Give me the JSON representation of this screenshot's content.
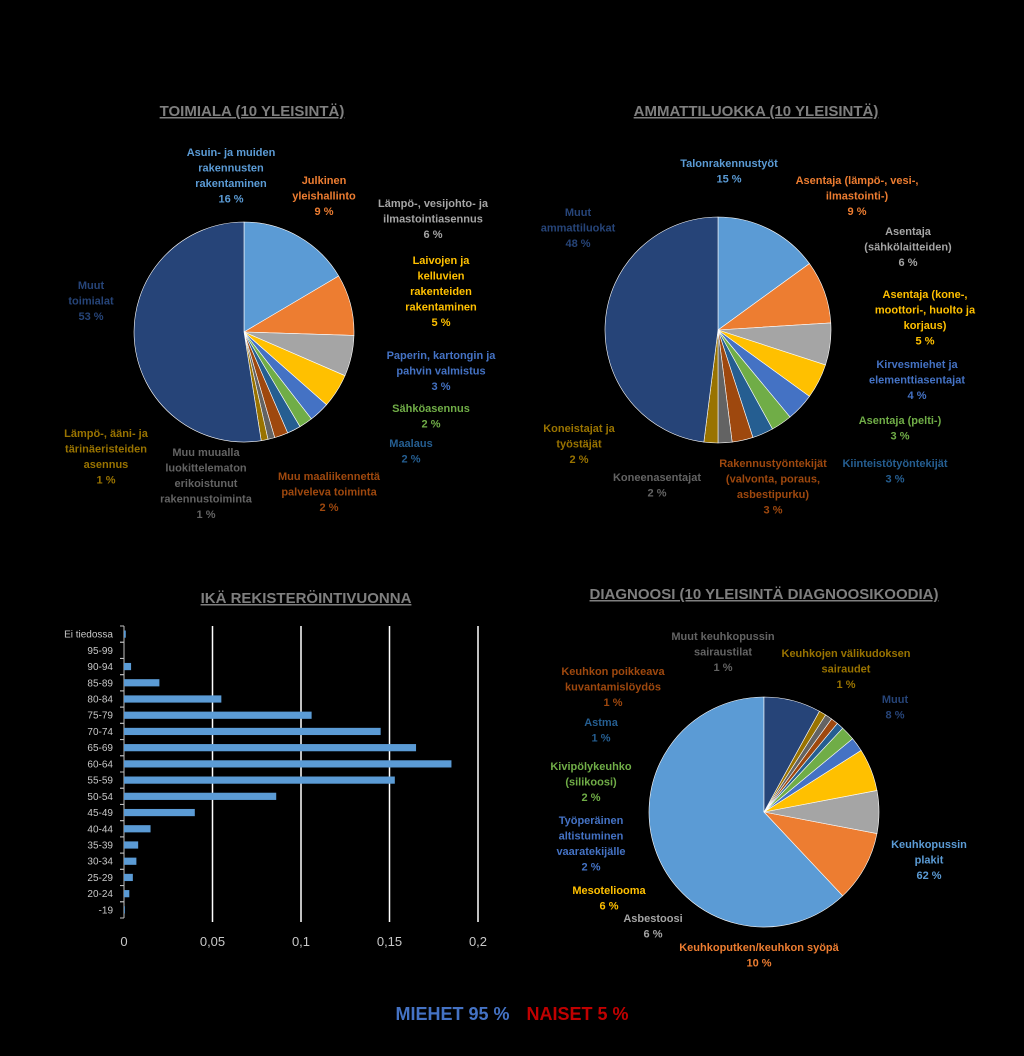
{
  "colors": {
    "c1": "#5b9bd5",
    "c2": "#ed7d31",
    "c3": "#a5a5a5",
    "c4": "#ffc000",
    "c5": "#4472c4",
    "c6": "#70ad47",
    "c7": "#255e91",
    "c8": "#9e480e",
    "c9": "#636363",
    "c10": "#997300",
    "c11": "#264478",
    "men": "#4472c4",
    "women": "#c00000"
  },
  "chart_data": [
    {
      "type": "pie",
      "title": "TOIMIALA (10 YLEISINTÄ)",
      "slices": [
        {
          "label": "Asuin- ja muiden\nrakennusten\nrakentaminen",
          "pct": "16 %",
          "value": 16.5,
          "color": "c1"
        },
        {
          "label": "Julkinen\nyleishallinto",
          "pct": "9 %",
          "value": 9,
          "color": "c2"
        },
        {
          "label": "Lämpö-, vesijohto- ja\nilmastointiasennus",
          "pct": "6 %",
          "value": 6,
          "color": "c3"
        },
        {
          "label": "Laivojen ja\nkelluvien\nrakenteiden\nrakentaminen",
          "pct": "5 %",
          "value": 5,
          "color": "c4"
        },
        {
          "label": "Paperin, kartongin ja\npahvin valmistus",
          "pct": "3 %",
          "value": 3,
          "color": "c5"
        },
        {
          "label": "Sähköasennus",
          "pct": "2 %",
          "value": 2,
          "color": "c6"
        },
        {
          "label": "Maalaus",
          "pct": "2 %",
          "value": 2,
          "color": "c7"
        },
        {
          "label": "Muu maaliikennettä\npalveleva toiminta",
          "pct": "2 %",
          "value": 2,
          "color": "c8"
        },
        {
          "label": "Muu muualla\nluokittelematon\nerikoistunut\nrakennustoiminta",
          "pct": "1 %",
          "value": 1,
          "color": "c9"
        },
        {
          "label": "Lämpö-, ääni- ja\ntärinäeristeiden\nasennus",
          "pct": "1 %",
          "value": 1,
          "color": "c10"
        },
        {
          "label": "Muut\ntoimialat",
          "pct": "53 %",
          "value": 52.5,
          "color": "c11"
        }
      ]
    },
    {
      "type": "pie",
      "title": "AMMATTILUOKKA (10 YLEISINTÄ)",
      "slices": [
        {
          "label": "Talonrakennustyöt",
          "pct": "15 %",
          "value": 15,
          "color": "c1"
        },
        {
          "label": "Asentaja (lämpö-, vesi-,\nilmastointi-)",
          "pct": "9 %",
          "value": 9,
          "color": "c2"
        },
        {
          "label": "Asentaja\n(sähkölaitteiden)",
          "pct": "6 %",
          "value": 6,
          "color": "c3"
        },
        {
          "label": "Asentaja (kone-,\nmoottori-, huolto ja\nkorjaus)",
          "pct": "5 %",
          "value": 5,
          "color": "c4"
        },
        {
          "label": "Kirvesmiehet ja\nelementtiasentajat",
          "pct": "4 %",
          "value": 4,
          "color": "c5"
        },
        {
          "label": "Asentaja (pelti-)",
          "pct": "3 %",
          "value": 3,
          "color": "c6"
        },
        {
          "label": "Kiinteistötyöntekijät",
          "pct": "3 %",
          "value": 3,
          "color": "c7"
        },
        {
          "label": "Rakennustyöntekijät\n(valvonta, poraus,\nasbestipurku)",
          "pct": "3 %",
          "value": 3,
          "color": "c8"
        },
        {
          "label": "Koneenasentajat",
          "pct": "2 %",
          "value": 2,
          "color": "c9"
        },
        {
          "label": "Koneistajat ja\ntyöstäjät",
          "pct": "2 %",
          "value": 2,
          "color": "c10"
        },
        {
          "label": "Muut\nammattiluokat",
          "pct": "48 %",
          "value": 48,
          "color": "c11"
        }
      ]
    },
    {
      "type": "bar",
      "orientation": "horizontal",
      "title": "IKÄ REKISTERÖINTIVUONNA",
      "categories": [
        "Ei tiedossa",
        "95-99",
        "90-94",
        "85-89",
        "80-84",
        "75-79",
        "70-74",
        "65-69",
        "60-64",
        "55-59",
        "50-54",
        "45-49",
        "40-44",
        "35-39",
        "30-34",
        "25-29",
        "20-24",
        "-19"
      ],
      "values": [
        0.001,
        0.0,
        0.004,
        0.02,
        0.055,
        0.106,
        0.145,
        0.165,
        0.185,
        0.153,
        0.086,
        0.04,
        0.015,
        0.008,
        0.007,
        0.005,
        0.003,
        0.0005
      ],
      "xlim": [
        0,
        0.2
      ],
      "xticks": [
        "0",
        "0,05",
        "0,1",
        "0,15",
        "0,2"
      ],
      "grid": true
    },
    {
      "type": "pie",
      "title": "DIAGNOOSI (10 YLEISINTÄ DIAGNOOSIKOODIA)",
      "slices": [
        {
          "label": "Keuhkopussin\nplakit",
          "pct": "62 %",
          "value": 62,
          "color": "c1"
        },
        {
          "label": "Keuhkoputken/keuhkon syöpä",
          "pct": "10 %",
          "value": 10,
          "color": "c2"
        },
        {
          "label": "Asbestoosi",
          "pct": "6 %",
          "value": 6,
          "color": "c3"
        },
        {
          "label": "Mesoteliooma",
          "pct": "6 %",
          "value": 6,
          "color": "c4"
        },
        {
          "label": "Työperäinen\naltistuminen\nvaaratekijälle",
          "pct": "2 %",
          "value": 2,
          "color": "c5"
        },
        {
          "label": "Kivipölykeuhko\n(silikoosi)",
          "pct": "2 %",
          "value": 2,
          "color": "c6"
        },
        {
          "label": "Astma",
          "pct": "1 %",
          "value": 1,
          "color": "c7"
        },
        {
          "label": "Keuhkon poikkeava\nkuvantamislöydös",
          "pct": "1 %",
          "value": 1,
          "color": "c8"
        },
        {
          "label": "Muut keuhkopussin\nsairaustilat",
          "pct": "1 %",
          "value": 1,
          "color": "c9"
        },
        {
          "label": "Keuhkojen välikudoksen\nsairaudet",
          "pct": "1 %",
          "value": 1,
          "color": "c10"
        },
        {
          "label": "Muut",
          "pct": "8 %",
          "value": 8,
          "color": "c11"
        }
      ]
    }
  ],
  "footer": {
    "men": "MIEHET 95 %",
    "women": "NAISET 5 %"
  }
}
